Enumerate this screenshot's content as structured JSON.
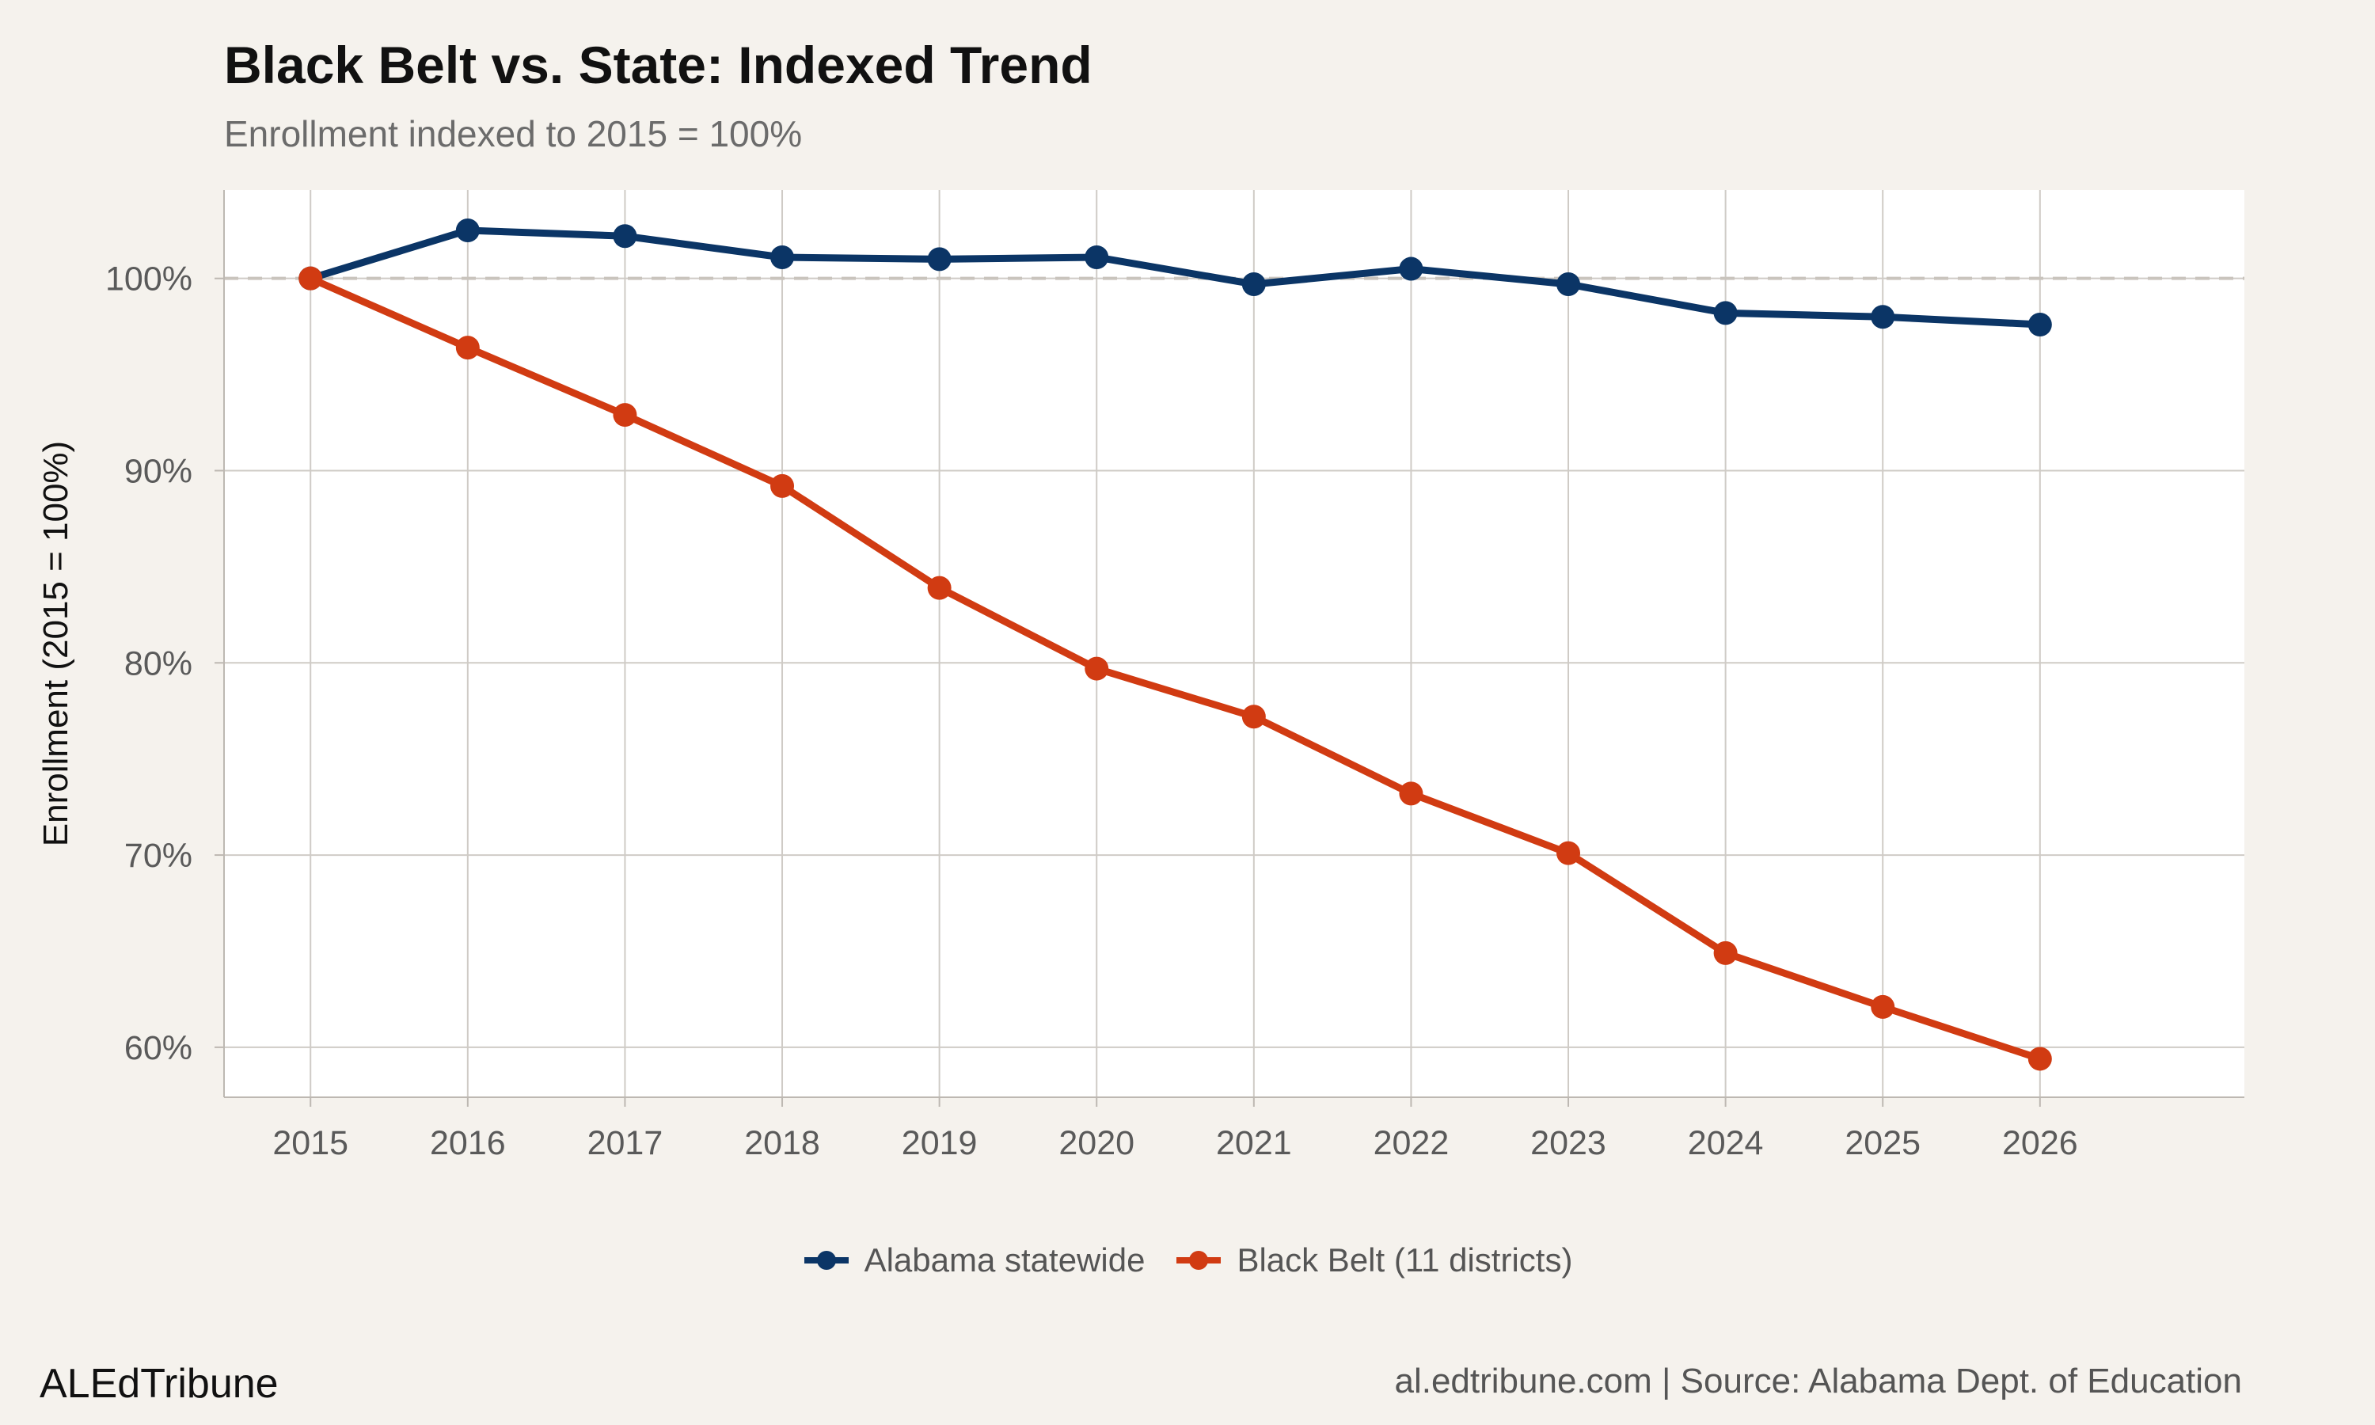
{
  "chart_data": {
    "type": "line",
    "title": "Black Belt vs. State: Indexed Trend",
    "subtitle": "Enrollment indexed to 2015 = 100%",
    "ylabel": "Enrollment (2015 = 100%)",
    "xlabel": "",
    "x": [
      2015,
      2016,
      2017,
      2018,
      2019,
      2020,
      2021,
      2022,
      2023,
      2024,
      2025,
      2026
    ],
    "ylim": [
      57.4,
      104.6
    ],
    "yticks": [
      "60%",
      "70%",
      "80%",
      "90%",
      "100%"
    ],
    "ytick_values": [
      60,
      70,
      80,
      90,
      100
    ],
    "reference_line": 100,
    "grid": true,
    "legend_position": "bottom",
    "series": [
      {
        "name": "Alabama statewide",
        "color": "#0b3566",
        "values": [
          100.0,
          102.5,
          102.2,
          101.1,
          101.0,
          101.1,
          99.7,
          100.5,
          99.7,
          98.2,
          98.0,
          97.6
        ]
      },
      {
        "name": "Black Belt (11 districts)",
        "color": "#d13b12",
        "values": [
          100.0,
          96.4,
          92.9,
          89.2,
          83.9,
          79.7,
          77.2,
          73.2,
          70.1,
          64.9,
          62.1,
          59.4
        ]
      }
    ]
  },
  "footer": {
    "brand": "ALEdTribune",
    "source": "al.edtribune.com | Source: Alabama Dept. of Education"
  }
}
